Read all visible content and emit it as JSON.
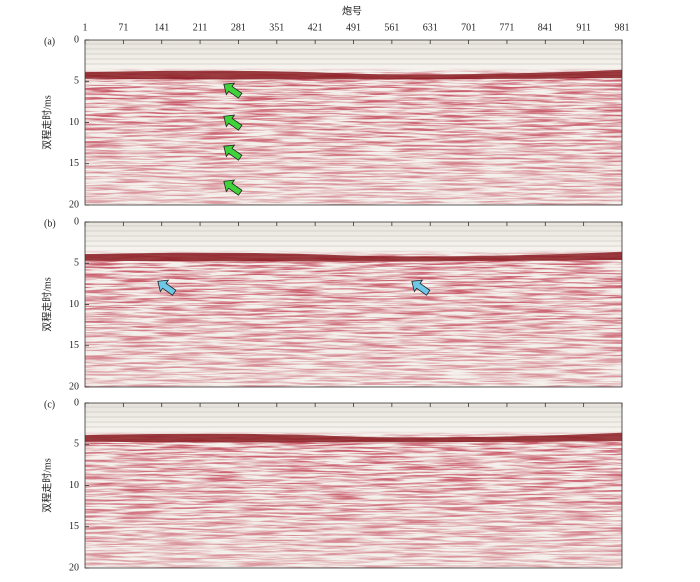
{
  "x_axis": {
    "label": "炮号",
    "lim": [
      1,
      981
    ],
    "ticks": [
      1,
      71,
      141,
      211,
      281,
      351,
      421,
      491,
      561,
      631,
      701,
      771,
      841,
      911,
      981
    ]
  },
  "y_axis": {
    "label": "双程走时/ms",
    "lim": [
      0,
      20
    ],
    "ticks": [
      0,
      5,
      10,
      15,
      20
    ]
  },
  "panels": [
    {
      "label": "(a)"
    },
    {
      "label": "(b)"
    },
    {
      "label": "(c)"
    }
  ]
}
